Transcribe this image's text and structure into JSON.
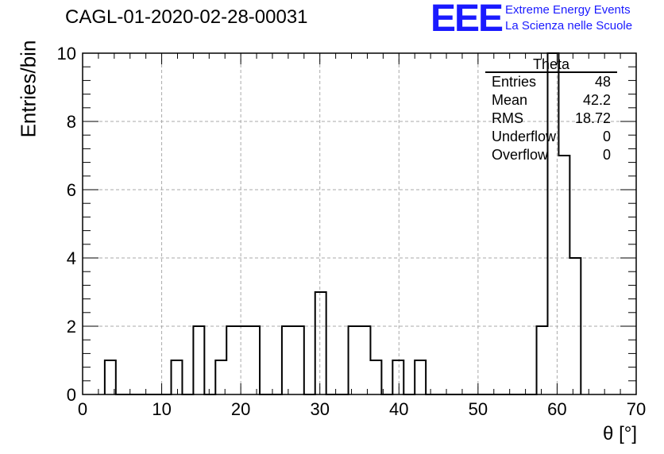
{
  "title": "CAGL-01-2020-02-28-00031",
  "logo": {
    "mark": "EEE",
    "line1": "Extreme Energy Events",
    "line2": "La Scienza nelle Scuole",
    "color": "#1a1aff"
  },
  "stats_box": {
    "name": "Theta",
    "rows": [
      {
        "label": "Entries",
        "value": "48"
      },
      {
        "label": "Mean",
        "value": "42.2"
      },
      {
        "label": "RMS",
        "value": "18.72"
      },
      {
        "label": "Underflow",
        "value": "0"
      },
      {
        "label": "Overflow",
        "value": "0"
      }
    ]
  },
  "chart_data": {
    "type": "bar",
    "histogram": true,
    "xlabel": "θ [°]",
    "ylabel": "Entries/bin",
    "xlim": [
      0,
      70
    ],
    "ylim": [
      0,
      10
    ],
    "xticks": [
      0,
      10,
      20,
      30,
      40,
      50,
      60,
      70
    ],
    "yticks": [
      0,
      2,
      4,
      6,
      8,
      10
    ],
    "grid": true,
    "bin_edges": [
      2.8,
      4.2,
      11.2,
      12.6,
      14.0,
      15.4,
      16.8,
      18.2,
      19.6,
      21.0,
      22.4,
      25.2,
      26.6,
      28.0,
      29.4,
      30.8,
      33.6,
      35.0,
      36.4,
      37.8,
      39.2,
      40.6,
      42.0,
      43.4,
      57.4,
      58.8,
      60.2,
      61.6,
      63.0
    ],
    "values": [
      1,
      0,
      1,
      0,
      2,
      0,
      1,
      2,
      2,
      2,
      0,
      2,
      2,
      0,
      3,
      0,
      2,
      2,
      1,
      0,
      1,
      0,
      1,
      0,
      2,
      10,
      7,
      4
    ],
    "line_color": "#000000"
  }
}
